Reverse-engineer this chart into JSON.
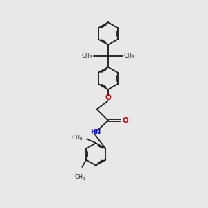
{
  "bg_color": "#e8e8e8",
  "bond_color": "#1a1a1a",
  "o_color": "#cc0000",
  "n_color": "#0000cc",
  "lw": 1.3,
  "ring_r": 0.55,
  "dbo": 0.055,
  "xlim": [
    0,
    10
  ],
  "ylim": [
    0,
    10
  ]
}
